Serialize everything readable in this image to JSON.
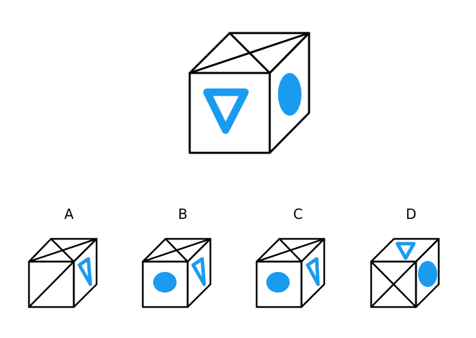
{
  "options": [
    {
      "letter": "A"
    },
    {
      "letter": "B"
    },
    {
      "letter": "C"
    },
    {
      "letter": "D"
    }
  ],
  "colors": {
    "shape": "#1a9bf0",
    "line": "#000000",
    "background": "#ffffff"
  }
}
